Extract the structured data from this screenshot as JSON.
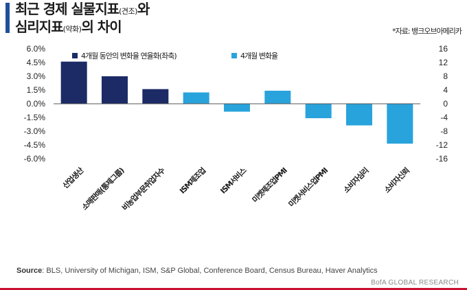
{
  "page": {
    "title_line1_main": "최근 경제 실물지표",
    "title_line1_small": "(견조)",
    "title_line1_end": "와",
    "title_line2_main": "심리지표",
    "title_line2_small": "(약화)",
    "title_line2_end": "의 차이",
    "source_label": "*자료: 뱅크오브아메리카",
    "footer_source_label": "Source",
    "footer_source_text": ": BLS, University of Michigan, ISM, S&P Global, Conference Board, Census Bureau, Haver Analytics",
    "footer_brand": "BofA GLOBAL RESEARCH"
  },
  "colors": {
    "series_dark": "#1c2a66",
    "series_light": "#29a3dc",
    "title_accent": "#1f4f9b",
    "text": "#1b1b1b"
  },
  "chart_data": {
    "type": "bar",
    "categories": [
      "산업생산",
      "소매판매(통제그룹)",
      "비농업부문취업자수",
      "ISM제조업",
      "ISM서비스",
      "미켓제조업PMI",
      "미켓서비스업PMI",
      "소비자심리",
      "소비자신뢰"
    ],
    "series": [
      {
        "name": "4개월 동안의 변화율 연율화(좌축)",
        "axis": "left",
        "values": [
          4.6,
          3.0,
          1.6,
          null,
          null,
          null,
          null,
          null,
          null
        ]
      },
      {
        "name": "4개월 변화율",
        "axis": "right",
        "values": [
          null,
          null,
          null,
          3.3,
          -2.3,
          3.8,
          -4.2,
          -6.3,
          -11.6
        ]
      }
    ],
    "left_axis": {
      "min": -6.0,
      "max": 6.0,
      "step": 1.5,
      "tick_labels": [
        "6.0%",
        "4.5%",
        "3.0%",
        "1.5%",
        "0.0%",
        "-1.5%",
        "-3.0%",
        "-4.5%",
        "-6.0%"
      ]
    },
    "right_axis": {
      "min": -16,
      "max": 16,
      "step": 4,
      "tick_labels": [
        "16",
        "12",
        "8",
        "4",
        "0",
        "-4",
        "-8",
        "-12",
        "-16"
      ]
    },
    "legend_position": "top",
    "grid": false
  }
}
